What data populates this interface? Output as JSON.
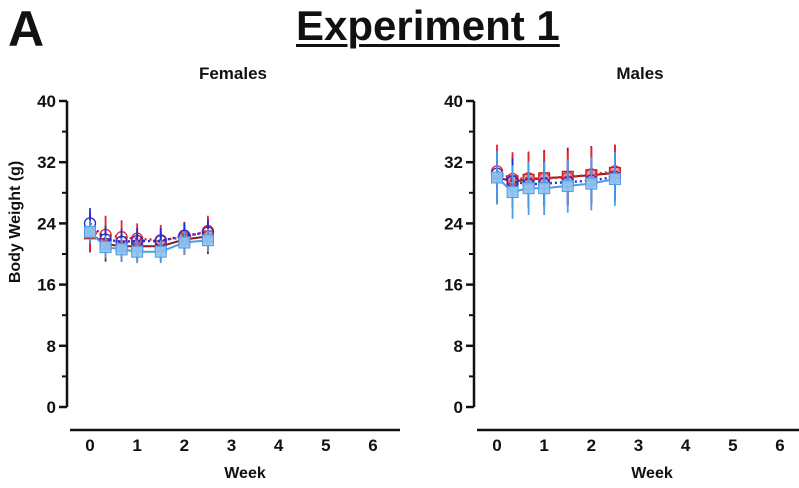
{
  "figure": {
    "panel_letter": "A",
    "title": "Experiment 1"
  },
  "colors": {
    "dark_red": "#8b1a1a",
    "red": "#e8202a",
    "blue": "#1f2fd6",
    "light_blue": "#4b9de8",
    "pink_fill": "#e48a96",
    "blue_fill": "#8fc3ee"
  },
  "chart_data": [
    {
      "type": "line",
      "title": "Females",
      "xlabel": "Week",
      "ylabel": "Body Weight (g)",
      "xlim": [
        0,
        6
      ],
      "ylim": [
        0,
        40
      ],
      "x_ticks": [
        "0",
        "1",
        "2",
        "3",
        "4",
        "5",
        "6"
      ],
      "y_ticks": [
        "0",
        "8",
        "16",
        "24",
        "32",
        "40"
      ],
      "x": [
        0,
        0.33,
        0.67,
        1,
        1.5,
        2,
        2.5
      ],
      "series": [
        {
          "color": "#8b1a1a",
          "marker": "square",
          "fill": "#e48a96",
          "dash": "solid",
          "values": [
            22.7,
            21.3,
            21.0,
            21.0,
            21.0,
            21.9,
            22.3
          ],
          "errors": [
            2.5,
            2.3,
            2.0,
            2.0,
            2.0,
            2.0,
            2.3
          ]
        },
        {
          "color": "#e8202a",
          "marker": "circle",
          "fill": "none",
          "dash": "dotted",
          "values": [
            22.8,
            22.5,
            22.2,
            22.0,
            21.8,
            22.2,
            23.0
          ],
          "errors": [
            2.5,
            2.5,
            2.2,
            2.0,
            2.0,
            2.0,
            2.0
          ]
        },
        {
          "color": "#1f2fd6",
          "marker": "circle",
          "fill": "none",
          "dash": "dotted",
          "values": [
            24.0,
            21.9,
            21.6,
            21.7,
            21.7,
            22.4,
            22.8
          ],
          "errors": [
            2.0,
            1.8,
            1.7,
            1.7,
            1.7,
            1.7,
            1.7
          ]
        },
        {
          "color": "#4b9de8",
          "marker": "square",
          "fill": "#8fc3ee",
          "dash": "solid",
          "values": [
            22.9,
            20.9,
            20.6,
            20.3,
            20.3,
            21.5,
            21.8
          ],
          "errors": [
            1.5,
            1.5,
            1.5,
            1.5,
            1.5,
            1.5,
            1.5
          ]
        }
      ]
    },
    {
      "type": "line",
      "title": "Males",
      "xlabel": "Week",
      "ylabel": "",
      "xlim": [
        0,
        6
      ],
      "ylim": [
        0,
        40
      ],
      "x_ticks": [
        "0",
        "1",
        "2",
        "3",
        "4",
        "5",
        "6"
      ],
      "y_ticks": [
        "0",
        "8",
        "16",
        "24",
        "32",
        "40"
      ],
      "x": [
        0,
        0.33,
        0.67,
        1,
        1.5,
        2,
        2.5
      ],
      "series": [
        {
          "color": "#8b1a1a",
          "marker": "square",
          "fill": "#e48a96",
          "dash": "solid",
          "values": [
            30.0,
            29.5,
            29.7,
            29.9,
            30.1,
            30.3,
            30.6
          ],
          "errors": [
            3.5,
            3.5,
            3.6,
            3.7,
            3.8,
            3.8,
            3.7
          ]
        },
        {
          "color": "#e8202a",
          "marker": "circle",
          "fill": "none",
          "dash": "dotted",
          "values": [
            30.8,
            29.8,
            29.9,
            29.9,
            30.0,
            30.4,
            30.8
          ],
          "errors": [
            3.5,
            3.5,
            3.5,
            3.5,
            3.5,
            3.5,
            3.5
          ]
        },
        {
          "color": "#1f2fd6",
          "marker": "circle",
          "fill": "none",
          "dash": "dotted",
          "values": [
            30.5,
            29.5,
            29.1,
            29.2,
            29.4,
            29.6,
            30.1
          ],
          "errors": [
            3.0,
            3.0,
            3.0,
            3.0,
            3.0,
            3.0,
            3.0
          ]
        },
        {
          "color": "#4b9de8",
          "marker": "square",
          "fill": "#8fc3ee",
          "dash": "solid",
          "values": [
            30.0,
            28.1,
            28.6,
            28.6,
            28.9,
            29.2,
            29.8
          ],
          "errors": [
            3.5,
            3.5,
            3.5,
            3.5,
            3.5,
            3.5,
            3.5
          ]
        }
      ]
    }
  ]
}
